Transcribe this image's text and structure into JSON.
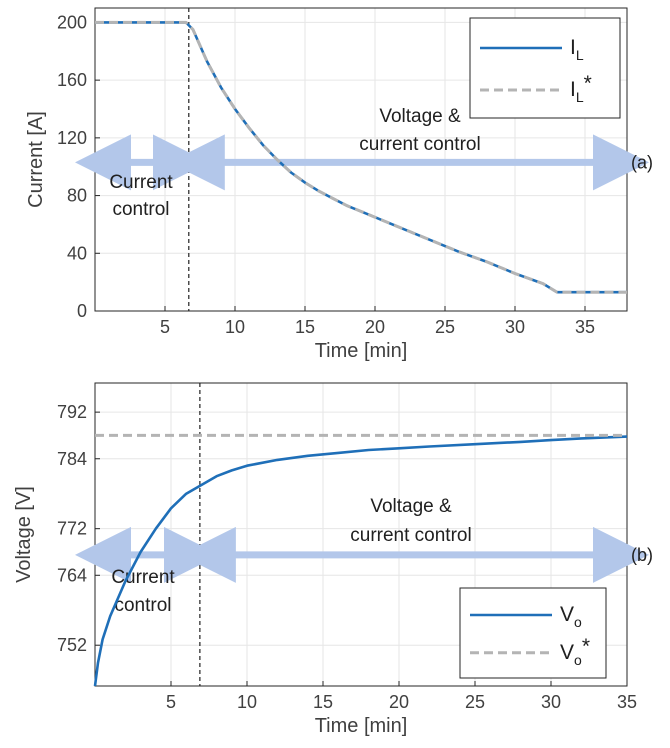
{
  "chart_data": [
    {
      "type": "line",
      "panel_label": "(a)",
      "xlabel": "Time [min]",
      "ylabel": "Current [A]",
      "xlim": [
        0,
        38
      ],
      "ylim": [
        0,
        210
      ],
      "xticks": [
        5,
        10,
        15,
        20,
        25,
        30,
        35
      ],
      "yticks": [
        0,
        40,
        80,
        120,
        160,
        200
      ],
      "grid": true,
      "legend_position": "top-right",
      "colors": {
        "measured": "#1f6fb8",
        "reference": "#b4b4b4",
        "annotation": "#b3c7ea"
      },
      "series": [
        {
          "name": "I_L",
          "style": "solid",
          "x": [
            0,
            6.5,
            7,
            8,
            9,
            10,
            11,
            12,
            13,
            14,
            15,
            16,
            17,
            18,
            19,
            20,
            22,
            24,
            26,
            28,
            30,
            32,
            33,
            34,
            35,
            36,
            38
          ],
          "y": [
            200,
            200,
            195,
            173,
            155,
            140,
            127,
            115,
            105,
            96,
            89,
            83,
            78,
            73,
            69,
            65,
            57,
            49,
            41,
            34,
            26,
            19,
            13,
            13,
            13,
            13,
            13
          ]
        },
        {
          "name": "I_L*",
          "style": "dashed",
          "x": [
            0,
            6.5,
            7,
            8,
            9,
            10,
            11,
            12,
            13,
            14,
            15,
            16,
            17,
            18,
            19,
            20,
            22,
            24,
            26,
            28,
            30,
            32,
            33,
            34,
            35,
            36,
            38
          ],
          "y": [
            200,
            200,
            195,
            173,
            155,
            140,
            127,
            115,
            105,
            96,
            89,
            83,
            78,
            73,
            69,
            65,
            57,
            49,
            41,
            34,
            26,
            19,
            13,
            13,
            13,
            13,
            13
          ]
        }
      ],
      "mode_switch_x": 6.7,
      "annotations": {
        "left_text": [
          "Current",
          "control"
        ],
        "right_text": [
          "Voltage &",
          "current control"
        ],
        "arrow_y": 103
      },
      "legend": [
        {
          "base": "I",
          "sub": "L",
          "sup": ""
        },
        {
          "base": "I",
          "sub": "L",
          "sup": "*"
        }
      ]
    },
    {
      "type": "line",
      "panel_label": "(b)",
      "xlabel": "Time [min]",
      "ylabel": "Voltage [V]",
      "xlim": [
        0,
        35
      ],
      "ylim": [
        745,
        797
      ],
      "xticks": [
        5,
        10,
        15,
        20,
        25,
        30,
        35
      ],
      "yticks": [
        752,
        764,
        772,
        784,
        792
      ],
      "grid": true,
      "legend_position": "bottom-right",
      "colors": {
        "measured": "#1f6fb8",
        "reference": "#b4b4b4",
        "annotation": "#b3c7ea"
      },
      "series": [
        {
          "name": "V_o",
          "style": "solid",
          "x": [
            0,
            0.2,
            0.5,
            1,
            1.5,
            2,
            3,
            4,
            5,
            6,
            7,
            8,
            9,
            10,
            12,
            14,
            16,
            18,
            20,
            22,
            25,
            28,
            30,
            32,
            35
          ],
          "y": [
            745,
            749,
            753,
            757,
            760,
            763,
            768,
            772,
            775.5,
            778,
            779.5,
            781,
            782,
            782.8,
            783.8,
            784.5,
            785,
            785.5,
            785.8,
            786.1,
            786.5,
            786.9,
            787.2,
            787.5,
            787.8
          ]
        },
        {
          "name": "V_o*",
          "style": "dashed",
          "x": [
            0,
            35
          ],
          "y": [
            788,
            788
          ]
        }
      ],
      "mode_switch_x": 6.9,
      "annotations": {
        "left_text": [
          "Current",
          "control"
        ],
        "right_text": [
          "Voltage &",
          "current control"
        ],
        "arrow_y": 767.5
      },
      "legend": [
        {
          "base": "V",
          "sub": "o",
          "sup": ""
        },
        {
          "base": "V",
          "sub": "o",
          "sup": "*"
        }
      ]
    }
  ]
}
